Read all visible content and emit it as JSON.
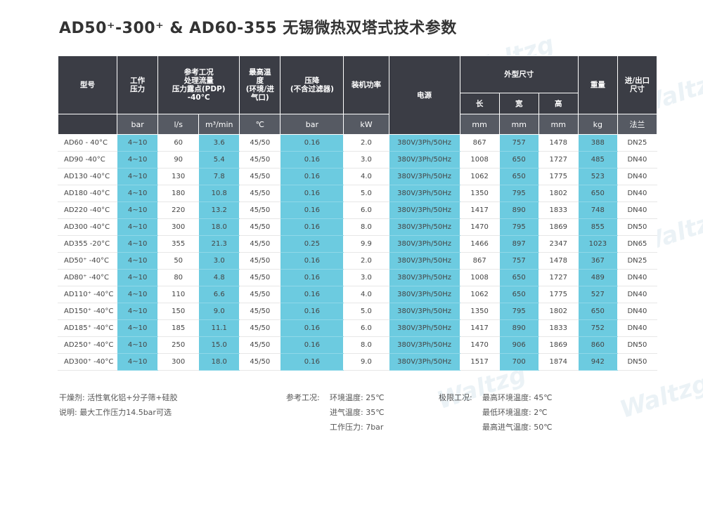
{
  "title": "AD50⁺-300⁺ & AD60-355 无锡微热双塔式技术参数",
  "header": {
    "model": "型号",
    "pressure": "工作\n压力",
    "flow": "参考工况\n处理流量\n压力露点(PDP)\n-40°C",
    "max_temp": "最高温\n度\n(环境/进\n气口)",
    "pressure_drop": "压降\n(不含过滤器)",
    "power": "装机功率",
    "supply": "电源",
    "dimensions": "外型尺寸",
    "length": "长",
    "width": "宽",
    "height": "高",
    "weight": "重量",
    "ports": "进/出口\n尺寸"
  },
  "units": [
    "bar",
    "l/s",
    "m³/min",
    "℃",
    "bar",
    "kW",
    "mm",
    "mm",
    "mm",
    "kg",
    "法兰"
  ],
  "rows": [
    [
      "AD60 - 40°C",
      "4~10",
      "60",
      "3.6",
      "45/50",
      "0.16",
      "2.0",
      "380V/3Ph/50Hz",
      "867",
      "757",
      "1478",
      "388",
      "DN25"
    ],
    [
      "AD90 -40°C",
      "4~10",
      "90",
      "5.4",
      "45/50",
      "0.16",
      "3.0",
      "380V/3Ph/50Hz",
      "1008",
      "650",
      "1727",
      "485",
      "DN40"
    ],
    [
      "AD130 -40°C",
      "4~10",
      "130",
      "7.8",
      "45/50",
      "0.16",
      "4.0",
      "380V/3Ph/50Hz",
      "1062",
      "650",
      "1775",
      "523",
      "DN40"
    ],
    [
      "AD180 -40°C",
      "4~10",
      "180",
      "10.8",
      "45/50",
      "0.16",
      "5.0",
      "380V/3Ph/50Hz",
      "1350",
      "795",
      "1802",
      "650",
      "DN40"
    ],
    [
      "AD220 -40°C",
      "4~10",
      "220",
      "13.2",
      "45/50",
      "0.16",
      "6.0",
      "380V/3Ph/50Hz",
      "1417",
      "890",
      "1833",
      "748",
      "DN40"
    ],
    [
      "AD300 -40°C",
      "4~10",
      "300",
      "18.0",
      "45/50",
      "0.16",
      "8.0",
      "380V/3Ph/50Hz",
      "1470",
      "795",
      "1869",
      "855",
      "DN50"
    ],
    [
      "AD355 -20°C",
      "4~10",
      "355",
      "21.3",
      "45/50",
      "0.25",
      "9.9",
      "380V/3Ph/50Hz",
      "1466",
      "897",
      "2347",
      "1023",
      "DN65"
    ],
    [
      "AD50⁺ -40°C",
      "4~10",
      "50",
      "3.0",
      "45/50",
      "0.16",
      "2.0",
      "380V/3Ph/50Hz",
      "867",
      "757",
      "1478",
      "367",
      "DN25"
    ],
    [
      "AD80⁺ -40°C",
      "4~10",
      "80",
      "4.8",
      "45/50",
      "0.16",
      "3.0",
      "380V/3Ph/50Hz",
      "1008",
      "650",
      "1727",
      "489",
      "DN40"
    ],
    [
      "AD110⁺ -40°C",
      "4~10",
      "110",
      "6.6",
      "45/50",
      "0.16",
      "4.0",
      "380V/3Ph/50Hz",
      "1062",
      "650",
      "1775",
      "527",
      "DN40"
    ],
    [
      "AD150⁺ -40°C",
      "4~10",
      "150",
      "9.0",
      "45/50",
      "0.16",
      "5.0",
      "380V/3Ph/50Hz",
      "1350",
      "795",
      "1802",
      "650",
      "DN40"
    ],
    [
      "AD185⁺ -40°C",
      "4~10",
      "185",
      "11.1",
      "45/50",
      "0.16",
      "6.0",
      "380V/3Ph/50Hz",
      "1417",
      "890",
      "1833",
      "752",
      "DN40"
    ],
    [
      "AD250⁺ -40°C",
      "4~10",
      "250",
      "15.0",
      "45/50",
      "0.16",
      "8.0",
      "380V/3Ph/50Hz",
      "1470",
      "906",
      "1869",
      "860",
      "DN50"
    ],
    [
      "AD300⁺ -40°C",
      "4~10",
      "300",
      "18.0",
      "45/50",
      "0.16",
      "9.0",
      "380V/3Ph/50Hz",
      "1517",
      "700",
      "1874",
      "942",
      "DN50"
    ]
  ],
  "notes": {
    "desiccant": "干燥剂: 活性氧化铝+分子筛+硅胶",
    "remark": "说明: 最大工作压力14.5bar可选",
    "ref_label": "参考工况:",
    "ref_ambient": "环境温度: 25℃",
    "ref_inlet": "进气温度: 35℃",
    "ref_pressure": "工作压力: 7bar",
    "limit_label": "极限工况:",
    "limit_max_ambient": "最高环境温度: 45℃",
    "limit_min_ambient": "最低环境温度: 2℃",
    "limit_max_inlet": "最高进气温度: 50℃"
  },
  "watermark": "Waltzg",
  "colors": {
    "header_dark": "#3b3d45",
    "unit_row": "#565a63",
    "highlight_blue": "#6ccbe0"
  }
}
